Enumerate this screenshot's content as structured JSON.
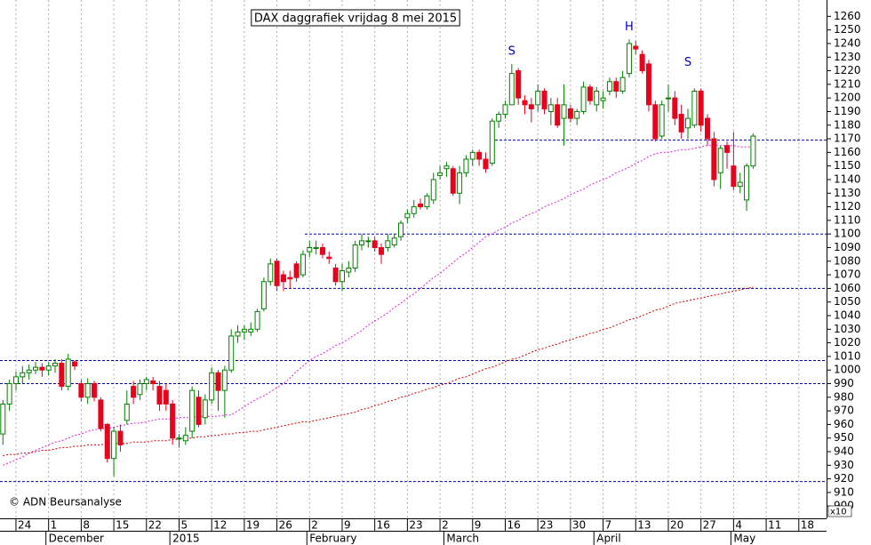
{
  "chart_data": {
    "type": "candlestick",
    "title": "DAX daggrafiek vrijdag 8 mei 2015",
    "credit": "© ADN Beursanalyse",
    "unit_label": "x10",
    "categories": [
      null,
      null,
      "24",
      null,
      null,
      null,
      null,
      "1",
      null,
      null,
      null,
      null,
      "8",
      null,
      null,
      null,
      null,
      "15",
      null,
      null,
      null,
      null,
      "22",
      null,
      null,
      null,
      null,
      "5",
      null,
      null,
      null,
      null,
      "12",
      null,
      null,
      null,
      null,
      "19",
      null,
      null,
      null,
      null,
      "26",
      null,
      null,
      null,
      null,
      "2",
      null,
      null,
      null,
      null,
      "9",
      null,
      null,
      null,
      null,
      "16",
      null,
      null,
      null,
      null,
      "23",
      null,
      null,
      null,
      null,
      "2",
      null,
      null,
      null,
      null,
      "9",
      null,
      null,
      null,
      null,
      "16",
      null,
      null,
      null,
      null,
      "23",
      null,
      null,
      null,
      null,
      "30",
      null,
      null,
      null,
      null,
      "7",
      null,
      null,
      null,
      null,
      "13",
      null,
      null,
      null,
      null,
      "20",
      null,
      null,
      null,
      null,
      "27",
      null,
      null,
      null,
      null,
      "4",
      null,
      null,
      null,
      null,
      "11",
      null,
      null,
      null,
      null,
      "18",
      null,
      null,
      null
    ],
    "months": [
      null,
      null,
      null,
      null,
      null,
      null,
      null,
      "December",
      null,
      null,
      null,
      null,
      null,
      null,
      null,
      null,
      null,
      null,
      null,
      null,
      null,
      null,
      null,
      null,
      null,
      null,
      "2015",
      null,
      null,
      null,
      null,
      null,
      null,
      null,
      null,
      null,
      null,
      null,
      null,
      null,
      null,
      null,
      null,
      null,
      null,
      null,
      null,
      "February",
      null,
      null,
      null,
      null,
      null,
      null,
      null,
      null,
      null,
      null,
      null,
      null,
      null,
      null,
      null,
      null,
      null,
      null,
      null,
      null,
      "March",
      null,
      null,
      null,
      null,
      null,
      null,
      null,
      null,
      null,
      null,
      null,
      null,
      null,
      null,
      null,
      null,
      null,
      null,
      null,
      null,
      null,
      null,
      "April",
      null,
      null,
      null,
      null,
      null,
      null,
      null,
      null,
      null,
      null,
      null,
      null,
      null,
      null,
      null,
      null,
      null,
      null,
      null,
      null,
      "May",
      null,
      null,
      null,
      null,
      null,
      null,
      null,
      null,
      null,
      null,
      null,
      null,
      null,
      null
    ],
    "open": [
      953,
      975,
      990,
      995,
      998,
      1000,
      1002,
      1000,
      1003,
      1005,
      988,
      1006,
      990,
      980,
      990,
      978,
      960,
      935,
      955,
      963,
      988,
      982,
      990,
      992,
      988,
      985,
      975,
      950,
      948,
      955,
      980,
      965,
      978,
      998,
      985,
      1000,
      1025,
      1028,
      1028,
      1030,
      1045,
      1065,
      1080,
      1070,
      1068,
      1078,
      1070,
      1087,
      1090,
      1090,
      1083,
      1075,
      1065,
      1072,
      1075,
      1092,
      1095,
      1095,
      1090,
      1090,
      1092,
      1098,
      1112,
      1115,
      1122,
      1120,
      1125,
      1143,
      1148,
      1148,
      1130,
      1145,
      1155,
      1160,
      1155,
      1152,
      1183,
      1188,
      1195,
      1220,
      1198,
      1195,
      1195,
      1205,
      1190,
      1195,
      1185,
      1192,
      1185,
      1190,
      1208,
      1195,
      1198,
      1205,
      1212,
      1205,
      1218,
      1238,
      1232,
      1225,
      1195,
      1172,
      1200,
      1200,
      1188,
      1178,
      1180,
      1205,
      1185,
      1170,
      1145,
      1165,
      1150,
      1135,
      1125,
      1150,
      null,
      null,
      null,
      null,
      null,
      null,
      null,
      null,
      null,
      null
    ],
    "high": [
      978,
      993,
      999,
      1003,
      1004,
      1006,
      1005,
      1006,
      1008,
      1008,
      1012,
      1007,
      993,
      994,
      992,
      980,
      961,
      958,
      960,
      985,
      992,
      993,
      995,
      995,
      992,
      990,
      978,
      953,
      958,
      988,
      985,
      982,
      1002,
      1000,
      1003,
      1030,
      1033,
      1033,
      1035,
      1045,
      1068,
      1082,
      1082,
      1073,
      1073,
      1080,
      1088,
      1095,
      1095,
      1093,
      1087,
      1078,
      1078,
      1080,
      1095,
      1100,
      1098,
      1098,
      1093,
      1100,
      1100,
      1110,
      1118,
      1125,
      1126,
      1130,
      1145,
      1150,
      1153,
      1150,
      1150,
      1158,
      1162,
      1162,
      1160,
      1185,
      1190,
      1198,
      1225,
      1222,
      1202,
      1200,
      1210,
      1207,
      1200,
      1200,
      1210,
      1195,
      1192,
      1212,
      1210,
      1208,
      1205,
      1215,
      1215,
      1220,
      1243,
      1242,
      1235,
      1228,
      1198,
      1198,
      1210,
      1205,
      1195,
      1192,
      1207,
      1207,
      1188,
      1175,
      1165,
      1168,
      1175,
      1145,
      1152,
      1174,
      null,
      null,
      null,
      null,
      null,
      null,
      null,
      null,
      null,
      null
    ],
    "low": [
      945,
      970,
      985,
      990,
      993,
      997,
      995,
      996,
      998,
      985,
      985,
      1000,
      977,
      975,
      977,
      955,
      932,
      922,
      940,
      960,
      975,
      978,
      985,
      985,
      970,
      970,
      945,
      943,
      945,
      950,
      958,
      960,
      975,
      970,
      965,
      998,
      1020,
      1022,
      1025,
      1028,
      1043,
      1062,
      1058,
      1058,
      1060,
      1065,
      1068,
      1083,
      1085,
      1082,
      1078,
      1062,
      1058,
      1068,
      1072,
      1088,
      1090,
      1087,
      1078,
      1087,
      1090,
      1095,
      1108,
      1112,
      1118,
      1118,
      1122,
      1140,
      1142,
      1128,
      1122,
      1142,
      1150,
      1150,
      1145,
      1150,
      1178,
      1185,
      1195,
      1195,
      1188,
      1182,
      1190,
      1188,
      1180,
      1178,
      1165,
      1182,
      1180,
      1188,
      1195,
      1190,
      1192,
      1202,
      1200,
      1203,
      1215,
      1232,
      1218,
      1190,
      1168,
      1170,
      1190,
      1180,
      1170,
      1170,
      1178,
      1175,
      1165,
      1135,
      1133,
      1148,
      1132,
      1130,
      1117,
      1148,
      null,
      null,
      null,
      null,
      null,
      null,
      null,
      null,
      null,
      null
    ],
    "close": [
      975,
      990,
      995,
      998,
      1000,
      1002,
      1000,
      1003,
      1005,
      988,
      1008,
      1003,
      980,
      990,
      980,
      957,
      935,
      955,
      945,
      975,
      980,
      990,
      993,
      990,
      975,
      975,
      950,
      950,
      952,
      985,
      960,
      978,
      998,
      985,
      1000,
      1025,
      1028,
      1030,
      1030,
      1043,
      1065,
      1078,
      1062,
      1065,
      1067,
      1068,
      1085,
      1090,
      1090,
      1085,
      1082,
      1065,
      1073,
      1075,
      1092,
      1095,
      1095,
      1090,
      1085,
      1095,
      1097,
      1108,
      1115,
      1120,
      1120,
      1128,
      1140,
      1145,
      1150,
      1130,
      1145,
      1155,
      1160,
      1155,
      1148,
      1183,
      1188,
      1195,
      1218,
      1200,
      1195,
      1192,
      1205,
      1192,
      1195,
      1180,
      1195,
      1185,
      1190,
      1208,
      1198,
      1205,
      1200,
      1212,
      1205,
      1215,
      1240,
      1236,
      1220,
      1195,
      1170,
      1195,
      1200,
      1185,
      1175,
      1185,
      1205,
      1180,
      1170,
      1140,
      1163,
      1160,
      1135,
      1138,
      1150,
      1172,
      null,
      null,
      null,
      null,
      null,
      null,
      null,
      null,
      null,
      null
    ],
    "up_color": "#008000",
    "down_color": "#e8001c",
    "overlays": [
      {
        "color": "#e020e0",
        "values": [
          930,
          932,
          934,
          936,
          939,
          941,
          943,
          945,
          947,
          948,
          950,
          952,
          953,
          955,
          956,
          957,
          957,
          958,
          959,
          960,
          961,
          961,
          962,
          963,
          964,
          964,
          964,
          965,
          965,
          965,
          966,
          966,
          966,
          966,
          967,
          967,
          970,
          973,
          976,
          979,
          981,
          984,
          987,
          990,
          994,
          999,
          1003,
          1007,
          1010,
          1012,
          1015,
          1018,
          1020,
          1023,
          1026,
          1029,
          1033,
          1036,
          1039,
          1042,
          1046,
          1049,
          1053,
          1056,
          1060,
          1064,
          1068,
          1071,
          1075,
          1079,
          1083,
          1086,
          1090,
          1094,
          1098,
          1100,
          1103,
          1105,
          1108,
          1110,
          1113,
          1115,
          1117,
          1120,
          1122,
          1124,
          1126,
          1129,
          1131,
          1133,
          1136,
          1138,
          1140,
          1142,
          1145,
          1147,
          1149,
          1152,
          1154,
          1157,
          1159,
          1160,
          1160,
          1161,
          1162,
          1162,
          1163,
          1164,
          1165,
          1165,
          1165,
          1165,
          1165,
          1164,
          1164,
          1164,
          null,
          null,
          null,
          null,
          null,
          null,
          null,
          null,
          null,
          null
        ]
      },
      {
        "color": "#d00000",
        "values": [
          937,
          938,
          938,
          939,
          939,
          940,
          941,
          941,
          942,
          943,
          943,
          944,
          944,
          945,
          945,
          945,
          946,
          946,
          946,
          946,
          947,
          947,
          947,
          948,
          948,
          948,
          949,
          949,
          950,
          950,
          951,
          951,
          952,
          952,
          953,
          953,
          954,
          954,
          955,
          955,
          956,
          957,
          958,
          959,
          960,
          961,
          962,
          962,
          963,
          964,
          965,
          966,
          967,
          968,
          969,
          971,
          972,
          974,
          975,
          977,
          978,
          980,
          981,
          983,
          984,
          986,
          987,
          989,
          990,
          992,
          994,
          995,
          997,
          999,
          1001,
          1002,
          1004,
          1006,
          1008,
          1009,
          1011,
          1013,
          1015,
          1016,
          1018,
          1019,
          1021,
          1022,
          1024,
          1025,
          1027,
          1028,
          1030,
          1031,
          1033,
          1035,
          1037,
          1038,
          1040,
          1042,
          1044,
          1045,
          1047,
          1049,
          1050,
          1051,
          1052,
          1053,
          1054,
          1055,
          1056,
          1057,
          1058,
          1059,
          1060,
          1061,
          null,
          null,
          null,
          null,
          null,
          null,
          null,
          null,
          null,
          null
        ]
      }
    ],
    "levels": {
      "color": "#0000b0",
      "values": [
        1169,
        1100,
        1060,
        1007,
        990,
        918
      ]
    },
    "annotations": [
      {
        "text": "S",
        "color": "#0000c0"
      },
      {
        "text": "H",
        "color": "#0000c0"
      },
      {
        "text": "S",
        "color": "#0000c0"
      }
    ],
    "ylim": [
      891,
      1272
    ],
    "yticks": [
      900,
      910,
      920,
      930,
      940,
      950,
      960,
      970,
      980,
      990,
      1000,
      1010,
      1020,
      1030,
      1040,
      1050,
      1060,
      1070,
      1080,
      1090,
      1100,
      1110,
      1120,
      1130,
      1140,
      1150,
      1160,
      1170,
      1180,
      1190,
      1200,
      1210,
      1220,
      1230,
      1240,
      1250,
      1260
    ],
    "grid": "x"
  }
}
